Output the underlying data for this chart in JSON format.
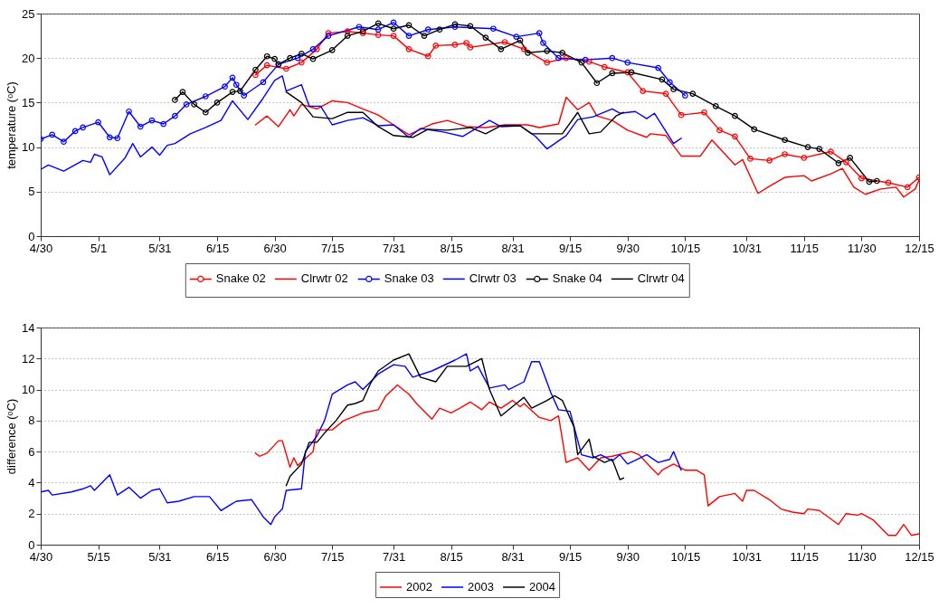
{
  "chart_data": [
    {
      "type": "line",
      "ylabel": "temperature (ᵒC)",
      "grid": "y",
      "legend": "bottom",
      "xlim": [
        "--04-30",
        "--12-15"
      ],
      "xticks": [
        {
          "value": "--04-30",
          "label": "4/30"
        },
        {
          "value": "--05-15",
          "label": "5/1"
        },
        {
          "value": "--05-31",
          "label": "5/31"
        },
        {
          "value": "--06-15",
          "label": "6/15"
        },
        {
          "value": "--06-30",
          "label": "6/30"
        },
        {
          "value": "--07-15",
          "label": "7/15"
        },
        {
          "value": "--07-31",
          "label": "7/31"
        },
        {
          "value": "--08-15",
          "label": "8/15"
        },
        {
          "value": "--08-31",
          "label": "8/31"
        },
        {
          "value": "--09-15",
          "label": "9/15"
        },
        {
          "value": "--09-30",
          "label": "9/30"
        },
        {
          "value": "--10-15",
          "label": "10/15"
        },
        {
          "value": "--10-31",
          "label": "10/31"
        },
        {
          "value": "--11-15",
          "label": "11/15"
        },
        {
          "value": "--11-30",
          "label": "11/30"
        },
        {
          "value": "--12-15",
          "label": "12/15"
        }
      ],
      "ylim": [
        0,
        25
      ],
      "yticks": [
        0,
        5,
        10,
        15,
        20,
        25
      ],
      "series": [
        {
          "name": "Snake 02",
          "color": "#ff0000",
          "marker": "circle",
          "x": [
            "--06-25",
            "--06-28",
            "--07-03",
            "--07-07",
            "--07-11",
            "--07-14",
            "--07-19",
            "--07-23",
            "--07-27",
            "--07-31",
            "--08-04",
            "--08-09",
            "--08-11",
            "--08-16",
            "--08-19",
            "--08-20",
            "--08-29",
            "--09-03",
            "--09-09",
            "--09-14",
            "--09-20",
            "--09-24",
            "--09-30",
            "--10-04",
            "--10-10",
            "--10-14",
            "--10-20",
            "--10-24",
            "--10-28",
            "--11-01",
            "--11-06",
            "--11-10",
            "--11-15",
            "--11-22",
            "--11-26",
            "--11-30",
            "--12-07",
            "--12-12",
            "--12-15"
          ],
          "values": [
            18.1,
            19.2,
            18.8,
            19.5,
            21.0,
            22.8,
            23.0,
            22.8,
            22.6,
            22.5,
            21.0,
            20.2,
            21.4,
            21.5,
            21.7,
            21.2,
            21.8,
            21.0,
            19.5,
            20.0,
            19.6,
            19.0,
            18.4,
            16.3,
            16.0,
            13.6,
            13.9,
            11.9,
            11.2,
            8.7,
            8.5,
            9.2,
            8.8,
            9.5,
            8.3,
            6.5,
            6.0,
            5.5,
            6.6
          ]
        },
        {
          "name": "Clrwtr 02",
          "color": "#ff0000",
          "x": [
            "--06-25",
            "--06-28",
            "--07-01",
            "--07-04",
            "--07-05",
            "--07-07",
            "--07-11",
            "--07-15",
            "--07-19",
            "--07-23",
            "--07-27",
            "--07-31",
            "--08-04",
            "--08-10",
            "--08-14",
            "--08-19",
            "--08-24",
            "--08-29",
            "--09-04",
            "--09-07",
            "--09-12",
            "--09-14",
            "--09-17",
            "--09-20",
            "--09-22",
            "--09-26",
            "--09-30",
            "--10-05",
            "--10-06",
            "--10-10",
            "--10-14",
            "--10-19",
            "--10-22",
            "--10-28",
            "--10-30",
            "--11-03",
            "--11-06",
            "--11-10",
            "--11-15",
            "--11-17",
            "--11-22",
            "--11-25",
            "--11-28",
            "--12-01",
            "--12-05",
            "--12-09",
            "--12-11",
            "--12-14",
            "--12-15"
          ],
          "values": [
            12.5,
            13.5,
            12.3,
            14.2,
            13.5,
            14.8,
            14.3,
            15.2,
            15.0,
            14.3,
            13.6,
            12.5,
            11.4,
            12.6,
            13.0,
            12.3,
            12.2,
            12.5,
            12.5,
            12.2,
            12.6,
            15.6,
            14.2,
            15.0,
            13.5,
            13.0,
            11.9,
            11.1,
            11.5,
            11.3,
            9.0,
            9.0,
            10.8,
            8.0,
            8.6,
            4.8,
            5.6,
            6.6,
            6.8,
            6.2,
            7.0,
            7.6,
            5.5,
            4.7,
            5.3,
            5.5,
            4.4,
            5.3,
            6.3
          ]
        },
        {
          "name": "Snake 03",
          "color": "#0000ff",
          "marker": "circle",
          "x": [
            "--04-30",
            "--05-03",
            "--05-06",
            "--05-09",
            "--05-11",
            "--05-15",
            "--05-18",
            "--05-20",
            "--05-23",
            "--05-26",
            "--05-29",
            "--06-01",
            "--06-04",
            "--06-07",
            "--06-12",
            "--06-17",
            "--06-19",
            "--06-20",
            "--06-22",
            "--06-27",
            "--07-01",
            "--07-06",
            "--07-10",
            "--07-14",
            "--07-22",
            "--07-27",
            "--07-31",
            "--08-04",
            "--08-09",
            "--08-16",
            "--08-26",
            "--09-01",
            "--09-07",
            "--09-08",
            "--09-12",
            "--09-19",
            "--09-26",
            "--09-30",
            "--10-08",
            "--10-11",
            "--10-15"
          ],
          "values": [
            10.9,
            11.4,
            10.6,
            11.8,
            12.2,
            12.8,
            11.1,
            11.0,
            14.0,
            12.3,
            13.0,
            12.6,
            13.5,
            14.8,
            15.7,
            16.8,
            17.8,
            17.0,
            15.8,
            17.3,
            19.3,
            20.0,
            21.0,
            22.5,
            23.5,
            23.2,
            24.0,
            22.5,
            23.2,
            23.5,
            23.3,
            22.4,
            22.8,
            21.7,
            20.0,
            19.8,
            20.0,
            19.5,
            18.9,
            17.3,
            15.8
          ]
        },
        {
          "name": "Clrwtr 03",
          "color": "#0000ff",
          "x": [
            "--04-30",
            "--05-02",
            "--05-06",
            "--05-11",
            "--05-13",
            "--05-14",
            "--05-16",
            "--05-18",
            "--05-22",
            "--05-24",
            "--05-26",
            "--05-29",
            "--05-31",
            "--06-02",
            "--06-04",
            "--06-08",
            "--06-12",
            "--06-16",
            "--06-19",
            "--06-23",
            "--06-27",
            "--06-30",
            "--07-02",
            "--07-03",
            "--07-07",
            "--07-09",
            "--07-12",
            "--07-15",
            "--07-19",
            "--07-23",
            "--07-27",
            "--07-31",
            "--08-04",
            "--08-07",
            "--08-13",
            "--08-18",
            "--08-25",
            "--08-28",
            "--09-02",
            "--09-06",
            "--09-09",
            "--09-14",
            "--09-17",
            "--09-21",
            "--09-26",
            "--09-28",
            "--10-02",
            "--10-05",
            "--10-07",
            "--10-12",
            "--10-14"
          ],
          "values": [
            7.5,
            8.0,
            7.3,
            8.5,
            8.3,
            9.2,
            8.9,
            6.9,
            8.8,
            10.4,
            8.9,
            10.0,
            9.1,
            10.2,
            10.4,
            11.5,
            12.2,
            13.0,
            15.2,
            13.1,
            15.5,
            17.5,
            18.0,
            16.3,
            17.0,
            14.6,
            14.6,
            12.5,
            13.0,
            13.3,
            12.4,
            12.5,
            11.1,
            12.1,
            11.7,
            11.2,
            13.0,
            12.3,
            12.4,
            11.2,
            9.8,
            11.3,
            13.1,
            13.4,
            14.3,
            13.8,
            14.0,
            13.2,
            13.8,
            10.4,
            11.0
          ]
        },
        {
          "name": "Snake 04",
          "color": "#000000",
          "marker": "circle",
          "x": [
            "--06-04",
            "--06-06",
            "--06-09",
            "--06-12",
            "--06-15",
            "--06-19",
            "--06-21",
            "--06-25",
            "--06-28",
            "--06-30",
            "--07-01",
            "--07-04",
            "--07-07",
            "--07-10",
            "--07-15",
            "--07-19",
            "--07-23",
            "--07-27",
            "--07-31",
            "--08-04",
            "--08-08",
            "--08-12",
            "--08-16",
            "--08-20",
            "--08-24",
            "--08-28",
            "--09-02",
            "--09-04",
            "--09-09",
            "--09-13",
            "--09-18",
            "--09-22",
            "--09-26",
            "--10-01",
            "--10-09",
            "--10-12",
            "--10-17",
            "--10-23",
            "--10-28",
            "--11-02",
            "--11-10",
            "--11-16",
            "--11-19",
            "--11-24",
            "--11-27",
            "--12-02",
            "--12-04"
          ],
          "values": [
            15.3,
            16.2,
            14.8,
            13.9,
            15.0,
            16.2,
            16.3,
            18.7,
            20.2,
            19.9,
            19.3,
            20.0,
            20.5,
            19.9,
            20.9,
            22.5,
            23.0,
            23.9,
            23.3,
            23.7,
            22.5,
            23.2,
            23.8,
            23.6,
            22.3,
            21.0,
            22.0,
            20.6,
            20.8,
            20.6,
            19.5,
            17.2,
            18.3,
            18.4,
            17.6,
            16.5,
            16.0,
            14.6,
            13.5,
            12.0,
            10.8,
            10.0,
            9.8,
            8.2,
            8.8,
            6.1,
            6.2
          ]
        },
        {
          "name": "Clrwtr 04",
          "color": "#000000",
          "x": [
            "--07-03",
            "--07-07",
            "--07-10",
            "--07-15",
            "--07-19",
            "--07-23",
            "--07-27",
            "--07-31",
            "--08-05",
            "--08-09",
            "--08-14",
            "--08-20",
            "--08-24",
            "--08-28",
            "--09-02",
            "--09-05",
            "--09-13",
            "--09-17",
            "--09-20",
            "--09-23",
            "--09-27",
            "--09-29"
          ],
          "values": [
            16.2,
            15.0,
            13.4,
            13.2,
            13.9,
            13.9,
            12.3,
            11.3,
            11.1,
            12.0,
            11.9,
            12.2,
            11.5,
            12.4,
            12.4,
            11.5,
            11.5,
            13.9,
            11.5,
            11.7,
            13.5,
            13.9
          ]
        }
      ]
    },
    {
      "type": "line",
      "ylabel": "difference (ᵒC)",
      "grid": "y",
      "legend": "bottom",
      "xlim": [
        "--04-30",
        "--12-15"
      ],
      "xticks": [
        {
          "value": "--04-30",
          "label": "4/30"
        },
        {
          "value": "--05-15",
          "label": "5/15"
        },
        {
          "value": "--05-31",
          "label": "5/31"
        },
        {
          "value": "--06-15",
          "label": "6/15"
        },
        {
          "value": "--06-30",
          "label": "6/30"
        },
        {
          "value": "--07-15",
          "label": "7/15"
        },
        {
          "value": "--07-31",
          "label": "7/31"
        },
        {
          "value": "--08-15",
          "label": "8/15"
        },
        {
          "value": "--08-31",
          "label": "8/31"
        },
        {
          "value": "--09-15",
          "label": "9/15"
        },
        {
          "value": "--09-30",
          "label": "9/30"
        },
        {
          "value": "--10-15",
          "label": "10/15"
        },
        {
          "value": "--10-31",
          "label": "10/31"
        },
        {
          "value": "--11-15",
          "label": "11/15"
        },
        {
          "value": "--11-30",
          "label": "11/30"
        },
        {
          "value": "--12-15",
          "label": "12/15"
        }
      ],
      "ylim": [
        0,
        14
      ],
      "yticks": [
        0,
        2,
        4,
        6,
        8,
        10,
        12,
        14
      ],
      "series": [
        {
          "name": "2002",
          "color": "#ff0000",
          "x": [
            "--06-25",
            "--06-26",
            "--06-28",
            "--07-01",
            "--07-02",
            "--07-04",
            "--07-05",
            "--07-06",
            "--07-10",
            "--07-11",
            "--07-15",
            "--07-18",
            "--07-23",
            "--07-27",
            "--07-29",
            "--08-01",
            "--08-04",
            "--08-06",
            "--08-10",
            "--08-12",
            "--08-15",
            "--08-18",
            "--08-20",
            "--08-23",
            "--08-25",
            "--08-28",
            "--08-31",
            "--09-02",
            "--09-03",
            "--09-07",
            "--09-10",
            "--09-12",
            "--09-14",
            "--09-17",
            "--09-20",
            "--09-23",
            "--09-26",
            "--10-01",
            "--10-03",
            "--10-06",
            "--10-08",
            "--10-09",
            "--10-12",
            "--10-15",
            "--10-18",
            "--10-20",
            "--10-21",
            "--10-24",
            "--10-28",
            "--10-30",
            "--10-31",
            "--11-02",
            "--11-06",
            "--11-09",
            "--11-12",
            "--11-15",
            "--11-16",
            "--11-19",
            "--11-24",
            "--11-26",
            "--11-29",
            "--11-30",
            "--12-03",
            "--12-07",
            "--12-09",
            "--12-11",
            "--12-13",
            "--12-15"
          ],
          "values": [
            5.9,
            5.7,
            5.9,
            6.7,
            6.7,
            5.0,
            5.6,
            5.1,
            6.0,
            7.4,
            7.4,
            8.0,
            8.5,
            8.7,
            9.6,
            10.3,
            9.7,
            9.1,
            8.1,
            8.8,
            8.5,
            8.9,
            9.2,
            8.7,
            9.2,
            8.8,
            9.3,
            8.9,
            9.1,
            8.2,
            8.0,
            8.3,
            5.3,
            5.6,
            4.8,
            5.6,
            5.7,
            6.0,
            5.8,
            5.0,
            4.5,
            4.8,
            5.2,
            4.8,
            4.8,
            4.5,
            2.5,
            3.1,
            3.3,
            2.8,
            3.5,
            3.5,
            2.9,
            2.3,
            2.1,
            2.0,
            2.3,
            2.2,
            1.3,
            2.0,
            1.9,
            2.0,
            1.6,
            0.6,
            0.6,
            1.3,
            0.6,
            0.7
          ]
        },
        {
          "name": "2003",
          "color": "#0000ff",
          "x": [
            "--04-30",
            "--05-02",
            "--05-03",
            "--05-08",
            "--05-11",
            "--05-13",
            "--05-14",
            "--05-18",
            "--05-20",
            "--05-23",
            "--05-26",
            "--05-29",
            "--05-31",
            "--06-02",
            "--06-05",
            "--06-09",
            "--06-13",
            "--06-16",
            "--06-20",
            "--06-24",
            "--06-27",
            "--06-29",
            "--06-30",
            "--07-02",
            "--07-03",
            "--07-07",
            "--07-08",
            "--07-11",
            "--07-13",
            "--07-15",
            "--07-19",
            "--07-21",
            "--07-23",
            "--07-27",
            "--07-31",
            "--08-03",
            "--08-05",
            "--08-10",
            "--08-16",
            "--08-19",
            "--08-20",
            "--08-22",
            "--08-25",
            "--08-29",
            "--08-30",
            "--09-03",
            "--09-05",
            "--09-07",
            "--09-10",
            "--09-12",
            "--09-15",
            "--09-18",
            "--09-21",
            "--09-23",
            "--09-26",
            "--09-28",
            "--09-30",
            "--10-05",
            "--10-08",
            "--10-11",
            "--10-12",
            "--10-14"
          ],
          "values": [
            3.4,
            3.5,
            3.2,
            3.4,
            3.6,
            3.8,
            3.5,
            4.5,
            3.2,
            3.7,
            3.0,
            3.5,
            3.6,
            2.7,
            2.8,
            3.1,
            3.1,
            2.2,
            2.8,
            2.9,
            1.8,
            1.3,
            1.8,
            2.3,
            3.5,
            3.6,
            6.0,
            7.0,
            8.0,
            9.7,
            10.3,
            10.5,
            10.0,
            11.0,
            11.6,
            11.5,
            10.8,
            11.2,
            11.9,
            12.3,
            11.2,
            11.5,
            10.1,
            10.3,
            10.0,
            10.5,
            11.8,
            11.8,
            9.8,
            8.7,
            8.6,
            5.8,
            5.6,
            5.8,
            5.4,
            5.8,
            5.2,
            5.8,
            5.3,
            5.5,
            6.0,
            4.8
          ]
        },
        {
          "name": "2004",
          "color": "#000000",
          "x": [
            "--07-03",
            "--07-04",
            "--07-07",
            "--07-09",
            "--07-11",
            "--07-13",
            "--07-16",
            "--07-19",
            "--07-21",
            "--07-23",
            "--07-25",
            "--07-27",
            "--07-31",
            "--08-04",
            "--08-07",
            "--08-11",
            "--08-14",
            "--08-19",
            "--08-23",
            "--08-25",
            "--08-28",
            "--09-01",
            "--09-03",
            "--09-05",
            "--09-09",
            "--09-11",
            "--09-13",
            "--09-16",
            "--09-17",
            "--09-20",
            "--09-21",
            "--09-24",
            "--09-26",
            "--09-28",
            "--09-29"
          ],
          "values": [
            3.8,
            4.4,
            5.2,
            6.6,
            6.6,
            7.2,
            8.0,
            9.0,
            9.1,
            9.3,
            10.4,
            11.2,
            11.9,
            12.3,
            10.8,
            10.5,
            11.5,
            11.5,
            12.0,
            10.0,
            8.3,
            9.1,
            9.5,
            8.8,
            9.3,
            9.6,
            9.3,
            7.6,
            5.8,
            6.8,
            5.7,
            5.3,
            5.5,
            4.2,
            4.3
          ]
        }
      ]
    }
  ]
}
